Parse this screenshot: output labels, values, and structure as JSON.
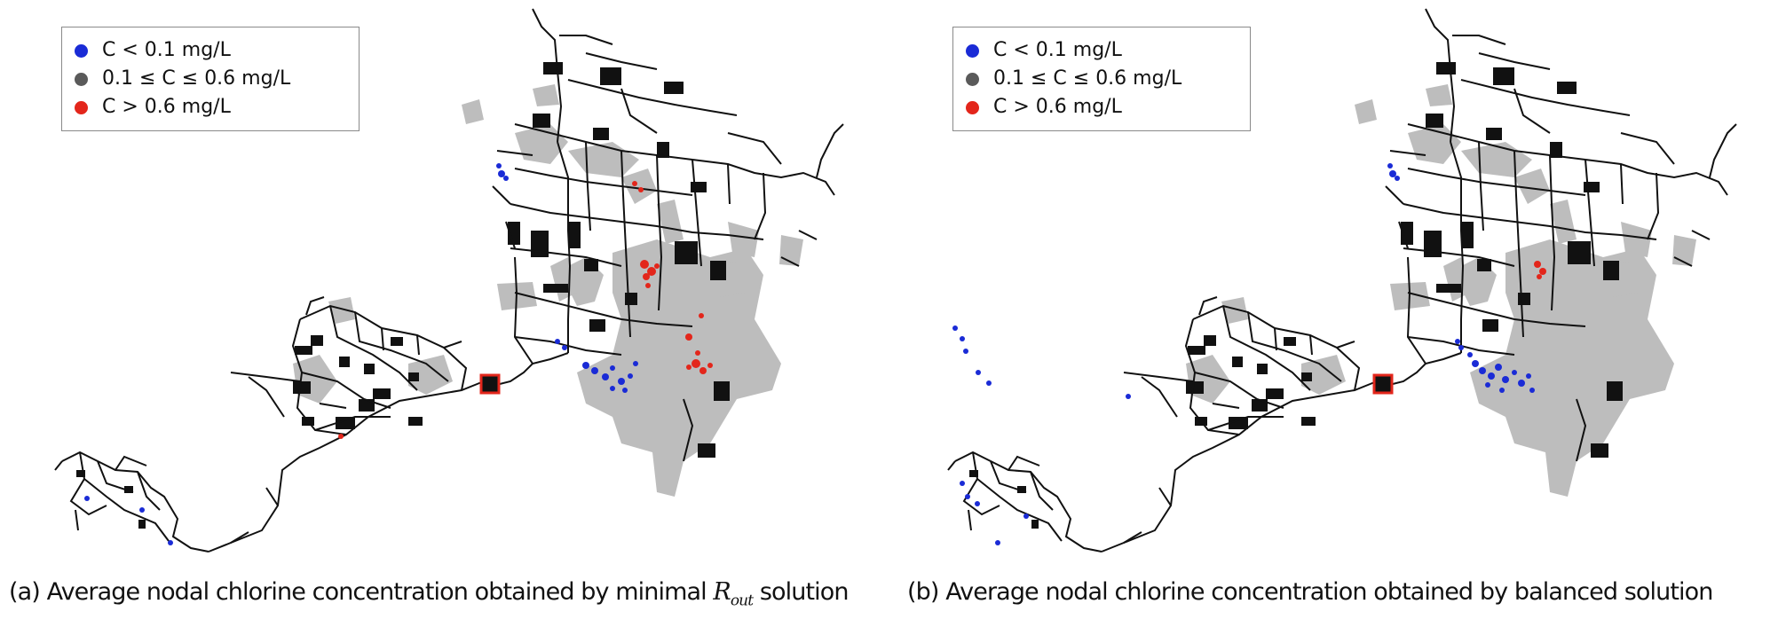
{
  "legend": {
    "items": [
      {
        "label": "C < 0.1 mg/L",
        "color": "#1a2bd6"
      },
      {
        "label": "0.1 ≤ C ≤ 0.6 mg/L",
        "color": "#5a5a5a"
      },
      {
        "label": "C > 0.6 mg/L",
        "color": "#e3261b"
      }
    ]
  },
  "panels": [
    {
      "caption_prefix": "(a) Average nodal chlorine concentration obtained by minimal",
      "caption_symbol": "R",
      "caption_subscript": "out",
      "caption_suffix": "solution"
    },
    {
      "caption": "(b) Average nodal chlorine concentration obtained by balanced solution"
    }
  ],
  "colors": {
    "pipe": "#111111",
    "zone_gray": "#bdbdbd",
    "source_fill": "#111111",
    "source_border": "#e3261b"
  }
}
